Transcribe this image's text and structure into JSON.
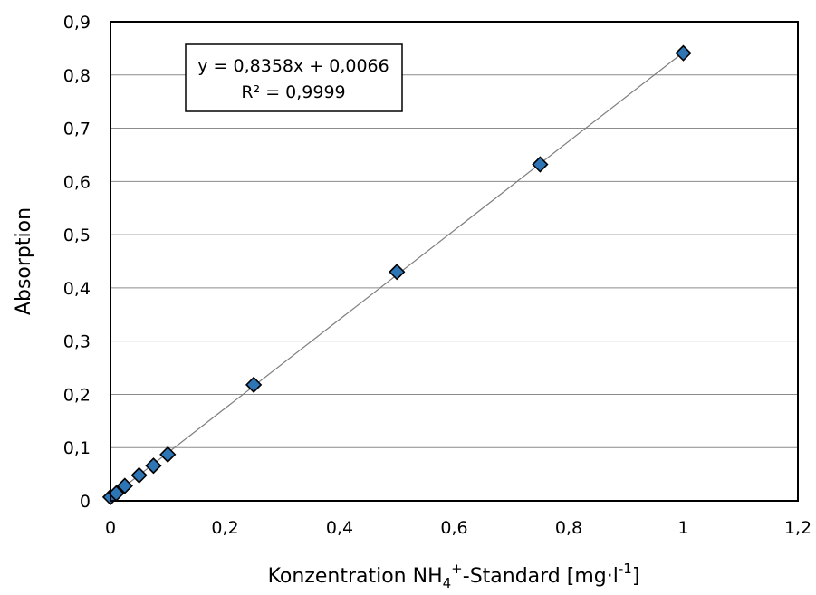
{
  "chart_data": {
    "type": "scatter",
    "title": "",
    "xlabel_parts": {
      "prefix": "Konzentration NH",
      "sub": "4",
      "sup": "+",
      "middle": "-Standard [mg·l",
      "sup2": "-1",
      "suffix": "]"
    },
    "ylabel": "Absorption",
    "xlim": [
      0,
      1.2
    ],
    "ylim": [
      0,
      0.9
    ],
    "x_ticks": [
      0,
      0.2,
      0.4,
      0.6,
      0.8,
      1,
      1.2
    ],
    "x_tick_labels": [
      "0",
      "0,2",
      "0,4",
      "0,6",
      "0,8",
      "1",
      "1,2"
    ],
    "y_ticks": [
      0,
      0.1,
      0.2,
      0.3,
      0.4,
      0.5,
      0.6,
      0.7,
      0.8,
      0.9
    ],
    "y_tick_labels": [
      "0",
      "0,1",
      "0,2",
      "0,3",
      "0,4",
      "0,5",
      "0,6",
      "0,7",
      "0,8",
      "0,9"
    ],
    "grid": {
      "horizontal": true,
      "vertical": false
    },
    "series": [
      {
        "x": [
          0,
          0.01,
          0.025,
          0.05,
          0.075,
          0.1,
          0.25,
          0.5,
          0.75,
          1
        ],
        "y": [
          0.007,
          0.014,
          0.028,
          0.048,
          0.066,
          0.087,
          0.218,
          0.43,
          0.632,
          0.841
        ],
        "marker": "diamond",
        "color": "#2e75b6"
      }
    ],
    "trendline": {
      "type": "linear",
      "slope": 0.8358,
      "intercept": 0.0066,
      "x_range": [
        0,
        1
      ],
      "color": "#7f7f7f"
    },
    "annotation": {
      "equation": "y = 0,8358x + 0,0066",
      "r_squared": "R² = 0,9999",
      "placement": "top-left"
    }
  }
}
